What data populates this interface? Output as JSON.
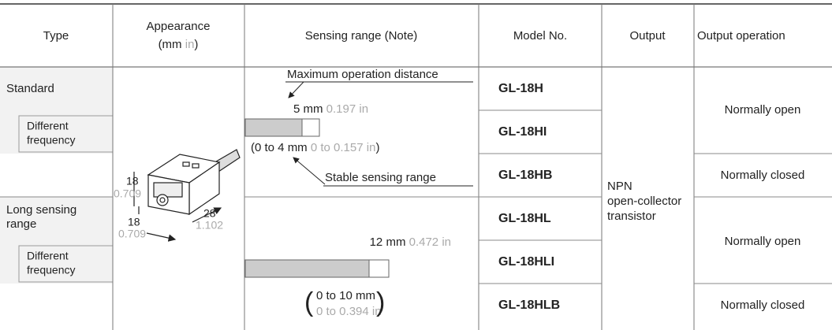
{
  "header": {
    "type": "Type",
    "appearance": {
      "title": "Appearance",
      "unit_open": "(mm",
      "unit_in": "in",
      "unit_close": ")"
    },
    "sensing": "Sensing range (Note)",
    "model": "Model No.",
    "output": "Output",
    "operation": "Output operation"
  },
  "types": [
    {
      "label": "Standard",
      "sub": [
        "Different",
        "frequency"
      ]
    },
    {
      "label": [
        "Long sensing",
        "range"
      ],
      "sub": [
        "Different",
        "frequency"
      ]
    }
  ],
  "dimensions": [
    {
      "mm": "18",
      "in": "0.709"
    },
    {
      "mm": "18",
      "in": "0.709"
    },
    {
      "mm": "28",
      "in": "1.102"
    }
  ],
  "standard_range": {
    "max_label": "Maximum operation distance",
    "max_mm": "5 mm",
    "max_in": "0.197 in",
    "stable_mm": "(0 to 4 mm",
    "stable_in": "0 to 0.157 in",
    "stable_close": ")",
    "stable_label": "Stable sensing range"
  },
  "long_range": {
    "max_mm": "12 mm",
    "max_in": "0.472 in",
    "open": "(",
    "stable_mm": "0 to 10 mm",
    "stable_in": "0 to 0.394 in",
    "close": ")"
  },
  "models": [
    "GL-18H",
    "GL-18HI",
    "GL-18HB",
    "GL-18HL",
    "GL-18HLI",
    "GL-18HLB"
  ],
  "output": [
    "NPN",
    "open-collector",
    "transistor"
  ],
  "operations": [
    "Normally open",
    "Normally closed",
    "Normally open",
    "Normally closed"
  ]
}
